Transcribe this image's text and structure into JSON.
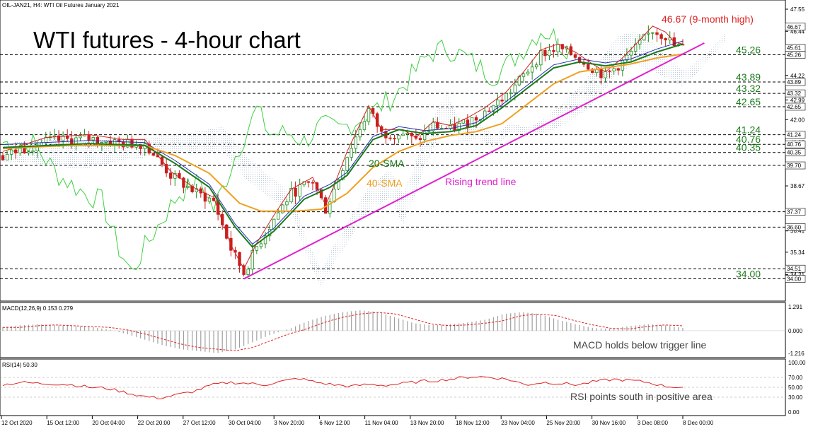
{
  "header": {
    "symbol_line": "OIL-JAN21, H4:  WTI Oil Futures January 2021",
    "main_title": "WTI futures - 4-hour chart",
    "macd_label": "MACD(12,26,9) 0.153 0.279",
    "rsi_label": "RSI(14) 50.30"
  },
  "annotations": {
    "high": "46.67 (9-month high)",
    "sma20": "20-SMA",
    "sma40": "40-SMA",
    "trend": "Rising trend line",
    "macd_note": "MACD holds below trigger line",
    "rsi_note": "RSI points south in positive area"
  },
  "colors": {
    "candle_up": "#1e8c1e",
    "candle_down": "#c81e1e",
    "sma20": "#1a7a1a",
    "sma40": "#f0a020",
    "trend": "#e020d0",
    "tenkan": "#d42020",
    "kijun": "#2030b0",
    "chikou": "#40d040",
    "cloud_bull": "#b9c9d9",
    "cloud_bear": "#e8b0d8",
    "high_label": "#e02020",
    "level_label": "#1e7d1e",
    "macd_hist": "#a0a0a0",
    "macd_signal": "#e02020",
    "rsi_line": "#e02020"
  },
  "chart_data": {
    "type": "candlestick",
    "instrument": "OIL-JAN21",
    "timeframe": "H4",
    "ylim": [
      33.7,
      47.55
    ],
    "price_axis_ticks": [
      "47.55",
      "46.44",
      "45.26",
      "44.22",
      "42.99",
      "42.00",
      "40.85",
      "39.70",
      "38.67",
      "37.37",
      "36.41",
      "35.34",
      "34.21"
    ],
    "highlighted_prices": [
      "46.67",
      "45.61",
      "45.26",
      "43.89",
      "43.32",
      "42.65",
      "41.24",
      "40.76",
      "40.35",
      "39.70",
      "37.37",
      "36.60",
      "34.51",
      "34.00"
    ],
    "levels": [
      {
        "value": 45.26,
        "label": "45.26"
      },
      {
        "value": 43.89,
        "label": "43.89"
      },
      {
        "value": 43.32,
        "label": "43.32"
      },
      {
        "value": 42.65,
        "label": "42.65"
      },
      {
        "value": 41.24,
        "label": "41.24"
      },
      {
        "value": 40.76,
        "label": "40.76"
      },
      {
        "value": 40.35,
        "label": "40.35"
      },
      {
        "value": 39.7,
        "label": ""
      },
      {
        "value": 37.37,
        "label": ""
      },
      {
        "value": 36.6,
        "label": ""
      },
      {
        "value": 34.51,
        "label": ""
      },
      {
        "value": 34.0,
        "label": "34.00"
      }
    ],
    "high": 46.67,
    "low": 34.0,
    "x_labels": [
      "12 Oct 2020",
      "15 Oct 12:00",
      "20 Oct 04:00",
      "22 Oct 20:00",
      "27 Oct 12:00",
      "30 Oct 04:00",
      "3 Nov 20:00",
      "6 Nov 12:00",
      "11 Nov 04:00",
      "13 Nov 20:00",
      "18 Nov 12:00",
      "23 Nov 04:00",
      "25 Nov 20:00",
      "30 Nov 16:00",
      "3 Dec 08:00",
      "8 Dec 00:00"
    ],
    "close_path": [
      {
        "x": 0,
        "y": 40.2
      },
      {
        "x": 10,
        "y": 40.9
      },
      {
        "x": 20,
        "y": 41.05
      },
      {
        "x": 28,
        "y": 40.8
      },
      {
        "x": 33,
        "y": 40.8
      },
      {
        "x": 39,
        "y": 39.2
      },
      {
        "x": 45,
        "y": 38.3
      },
      {
        "x": 49,
        "y": 37.9
      },
      {
        "x": 53,
        "y": 35.5
      },
      {
        "x": 56,
        "y": 34.3
      },
      {
        "x": 59,
        "y": 35.6
      },
      {
        "x": 63,
        "y": 37.0
      },
      {
        "x": 67,
        "y": 38.3
      },
      {
        "x": 72,
        "y": 38.9
      },
      {
        "x": 75,
        "y": 37.5
      },
      {
        "x": 77,
        "y": 38.5
      },
      {
        "x": 80,
        "y": 40.2
      },
      {
        "x": 85,
        "y": 42.5
      },
      {
        "x": 88,
        "y": 41.3
      },
      {
        "x": 93,
        "y": 41.3
      },
      {
        "x": 96,
        "y": 40.9
      },
      {
        "x": 100,
        "y": 41.7
      },
      {
        "x": 104,
        "y": 41.5
      },
      {
        "x": 108,
        "y": 41.9
      },
      {
        "x": 112,
        "y": 42.4
      },
      {
        "x": 117,
        "y": 43.2
      },
      {
        "x": 121,
        "y": 44.2
      },
      {
        "x": 125,
        "y": 45.3
      },
      {
        "x": 129,
        "y": 45.6
      },
      {
        "x": 133,
        "y": 45.2
      },
      {
        "x": 137,
        "y": 44.6
      },
      {
        "x": 140,
        "y": 44.2
      },
      {
        "x": 144,
        "y": 44.9
      },
      {
        "x": 148,
        "y": 45.8
      },
      {
        "x": 151,
        "y": 46.5
      },
      {
        "x": 154,
        "y": 46.2
      },
      {
        "x": 156,
        "y": 45.7
      },
      {
        "x": 158,
        "y": 45.6
      }
    ],
    "sma20_path": [
      {
        "x": 0,
        "y": 40.6
      },
      {
        "x": 20,
        "y": 40.8
      },
      {
        "x": 33,
        "y": 40.7
      },
      {
        "x": 40,
        "y": 39.8
      },
      {
        "x": 48,
        "y": 38.6
      },
      {
        "x": 54,
        "y": 36.6
      },
      {
        "x": 58,
        "y": 35.6
      },
      {
        "x": 63,
        "y": 36.4
      },
      {
        "x": 70,
        "y": 38.0
      },
      {
        "x": 76,
        "y": 38.6
      },
      {
        "x": 80,
        "y": 39.2
      },
      {
        "x": 86,
        "y": 41.0
      },
      {
        "x": 92,
        "y": 41.5
      },
      {
        "x": 98,
        "y": 41.3
      },
      {
        "x": 104,
        "y": 41.4
      },
      {
        "x": 110,
        "y": 41.7
      },
      {
        "x": 116,
        "y": 42.6
      },
      {
        "x": 122,
        "y": 43.6
      },
      {
        "x": 128,
        "y": 44.6
      },
      {
        "x": 134,
        "y": 44.9
      },
      {
        "x": 140,
        "y": 44.7
      },
      {
        "x": 146,
        "y": 44.9
      },
      {
        "x": 152,
        "y": 45.4
      },
      {
        "x": 158,
        "y": 45.8
      }
    ],
    "sma40_path": [
      {
        "x": 0,
        "y": 40.55
      },
      {
        "x": 15,
        "y": 40.7
      },
      {
        "x": 33,
        "y": 40.7
      },
      {
        "x": 40,
        "y": 40.2
      },
      {
        "x": 48,
        "y": 39.3
      },
      {
        "x": 55,
        "y": 37.8
      },
      {
        "x": 60,
        "y": 37.4
      },
      {
        "x": 68,
        "y": 37.4
      },
      {
        "x": 74,
        "y": 37.5
      },
      {
        "x": 80,
        "y": 38.3
      },
      {
        "x": 86,
        "y": 39.6
      },
      {
        "x": 92,
        "y": 40.4
      },
      {
        "x": 98,
        "y": 40.9
      },
      {
        "x": 104,
        "y": 41.2
      },
      {
        "x": 110,
        "y": 41.4
      },
      {
        "x": 116,
        "y": 41.8
      },
      {
        "x": 122,
        "y": 42.8
      },
      {
        "x": 128,
        "y": 43.8
      },
      {
        "x": 134,
        "y": 44.4
      },
      {
        "x": 140,
        "y": 44.6
      },
      {
        "x": 146,
        "y": 44.8
      },
      {
        "x": 152,
        "y": 45.1
      },
      {
        "x": 158,
        "y": 45.3
      }
    ],
    "trend_line": [
      {
        "x": 56,
        "y": 34.0
      },
      {
        "x": 163,
        "y": 45.85
      }
    ],
    "macd": {
      "label": "MACD(12,26,9)",
      "main": 0.153,
      "signal": 0.279,
      "ylim": [
        -1.216,
        1.291
      ],
      "ticks": [
        "1.291",
        "0.000",
        "-1.216"
      ],
      "histogram": [
        0.2,
        0.3,
        0.35,
        0.3,
        0.25,
        0.2,
        0.05,
        -0.2,
        -0.5,
        -0.8,
        -1.0,
        -1.1,
        -1.2,
        -1.0,
        -0.6,
        -0.2,
        0.1,
        0.5,
        0.8,
        1.0,
        1.1,
        1.0,
        0.7,
        0.4,
        0.3,
        0.35,
        0.45,
        0.6,
        0.9,
        1.0,
        0.9,
        0.6,
        0.35,
        0.15,
        0.1,
        0.25,
        0.35,
        0.3,
        0.15
      ]
    },
    "rsi": {
      "label": "RSI(14)",
      "value": 50.3,
      "ylim": [
        0,
        100
      ],
      "ticks": [
        "100.00",
        "70.00",
        "50.00",
        "30.00",
        "0.00"
      ],
      "values": [
        55,
        60,
        58,
        57,
        55,
        50,
        48,
        40,
        32,
        28,
        35,
        42,
        55,
        60,
        58,
        55,
        62,
        68,
        60,
        55,
        52,
        56,
        54,
        58,
        62,
        64,
        68,
        72,
        70,
        66,
        55,
        60,
        58,
        55,
        62,
        66,
        64,
        60,
        52,
        50
      ]
    }
  }
}
